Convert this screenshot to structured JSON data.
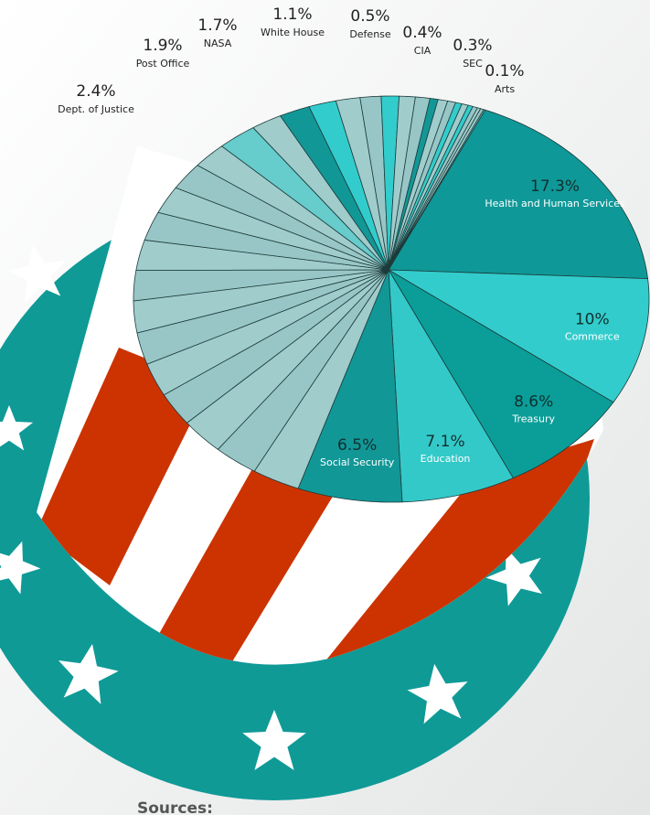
{
  "chart_data": {
    "type": "pie",
    "categories": [
      "Arts",
      "Health and Human Services",
      "Commerce",
      "Treasury",
      "Education",
      "Social Security",
      null,
      null,
      null,
      null,
      null,
      null,
      null,
      null,
      null,
      null,
      null,
      null,
      null,
      "Dept. of Justice",
      null,
      "Post Office",
      "NASA",
      null,
      null,
      "White House",
      null,
      null,
      "Defense",
      null,
      null,
      "CIA",
      null,
      "SEC",
      null,
      null,
      null
    ],
    "values": [
      0.1,
      17.3,
      10,
      8.6,
      7.1,
      6.5,
      3.0,
      2.8,
      2.8,
      2.6,
      2.6,
      2.5,
      2.5,
      2.4,
      2.4,
      2.3,
      2.2,
      2.2,
      2.1,
      2.4,
      1.9,
      1.9,
      1.7,
      1.5,
      1.3,
      1.1,
      1.0,
      0.9,
      0.5,
      0.6,
      0.5,
      0.4,
      0.4,
      0.3,
      0.3,
      0.2,
      0.2
    ],
    "value_labels": [
      "0.1%",
      "17.3%",
      "10%",
      "8.6%",
      "7.1%",
      "6.5%",
      null,
      null,
      null,
      null,
      null,
      null,
      null,
      null,
      null,
      null,
      null,
      null,
      null,
      "2.4%",
      null,
      "1.9%",
      "1.7%",
      null,
      null,
      "1.1%",
      null,
      null,
      "0.5%",
      null,
      null,
      "0.4%",
      null,
      "0.3%",
      null,
      null,
      null
    ],
    "colors": [
      "#7fbfbf",
      "#0f9898",
      "#33cccc",
      "#0b9e99",
      "#33c9c9",
      "#129797",
      "#a0cccc",
      "#98c6c6",
      "#a0cccc",
      "#98c6c6",
      "#a0cccc",
      "#98c6c6",
      "#a0cccc",
      "#98c6c6",
      "#a0cccc",
      "#98c6c6",
      "#a0cccc",
      "#98c6c6",
      "#a0cccc",
      "#66cccc",
      "#a0cccc",
      "#129797",
      "#33cccc",
      "#a0cccc",
      "#98c6c6",
      "#33cccc",
      "#a0cccc",
      "#98c6c6",
      "#129797",
      "#a0cccc",
      "#98c6c6",
      "#33cccc",
      "#a0cccc",
      "#33cccc",
      "#98c6c6",
      "#a0cccc",
      "#98c6c6"
    ]
  },
  "sources_heading": "Sources:"
}
